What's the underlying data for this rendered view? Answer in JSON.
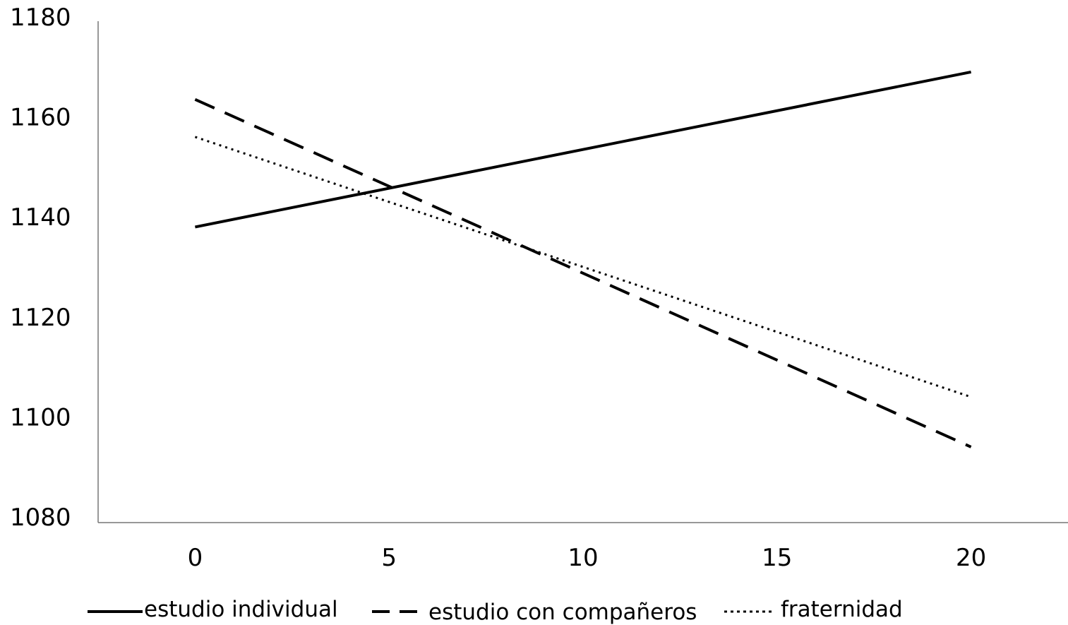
{
  "chart_data": {
    "type": "line",
    "title": "",
    "xlabel": "",
    "ylabel": "",
    "xlim": [
      -2.5,
      22.5
    ],
    "ylim": [
      1080,
      1180
    ],
    "x_ticks": [
      "0",
      "5",
      "10",
      "15",
      "20"
    ],
    "y_ticks": [
      "1080",
      "1100",
      "1120",
      "1140",
      "1160",
      "1180"
    ],
    "grid": false,
    "legend_position": "bottom",
    "series": [
      {
        "name": "estudio individual",
        "style": "solid",
        "color": "#000000",
        "x": [
          0,
          20
        ],
        "y": [
          1138,
          1169
        ]
      },
      {
        "name": "estudio con compañeros",
        "style": "dashed",
        "color": "#000000",
        "x": [
          0,
          20
        ],
        "y": [
          1163.5,
          1094
        ]
      },
      {
        "name": "fraternidad",
        "style": "dotted",
        "color": "#000000",
        "x": [
          0,
          20
        ],
        "y": [
          1156,
          1104
        ]
      }
    ]
  }
}
